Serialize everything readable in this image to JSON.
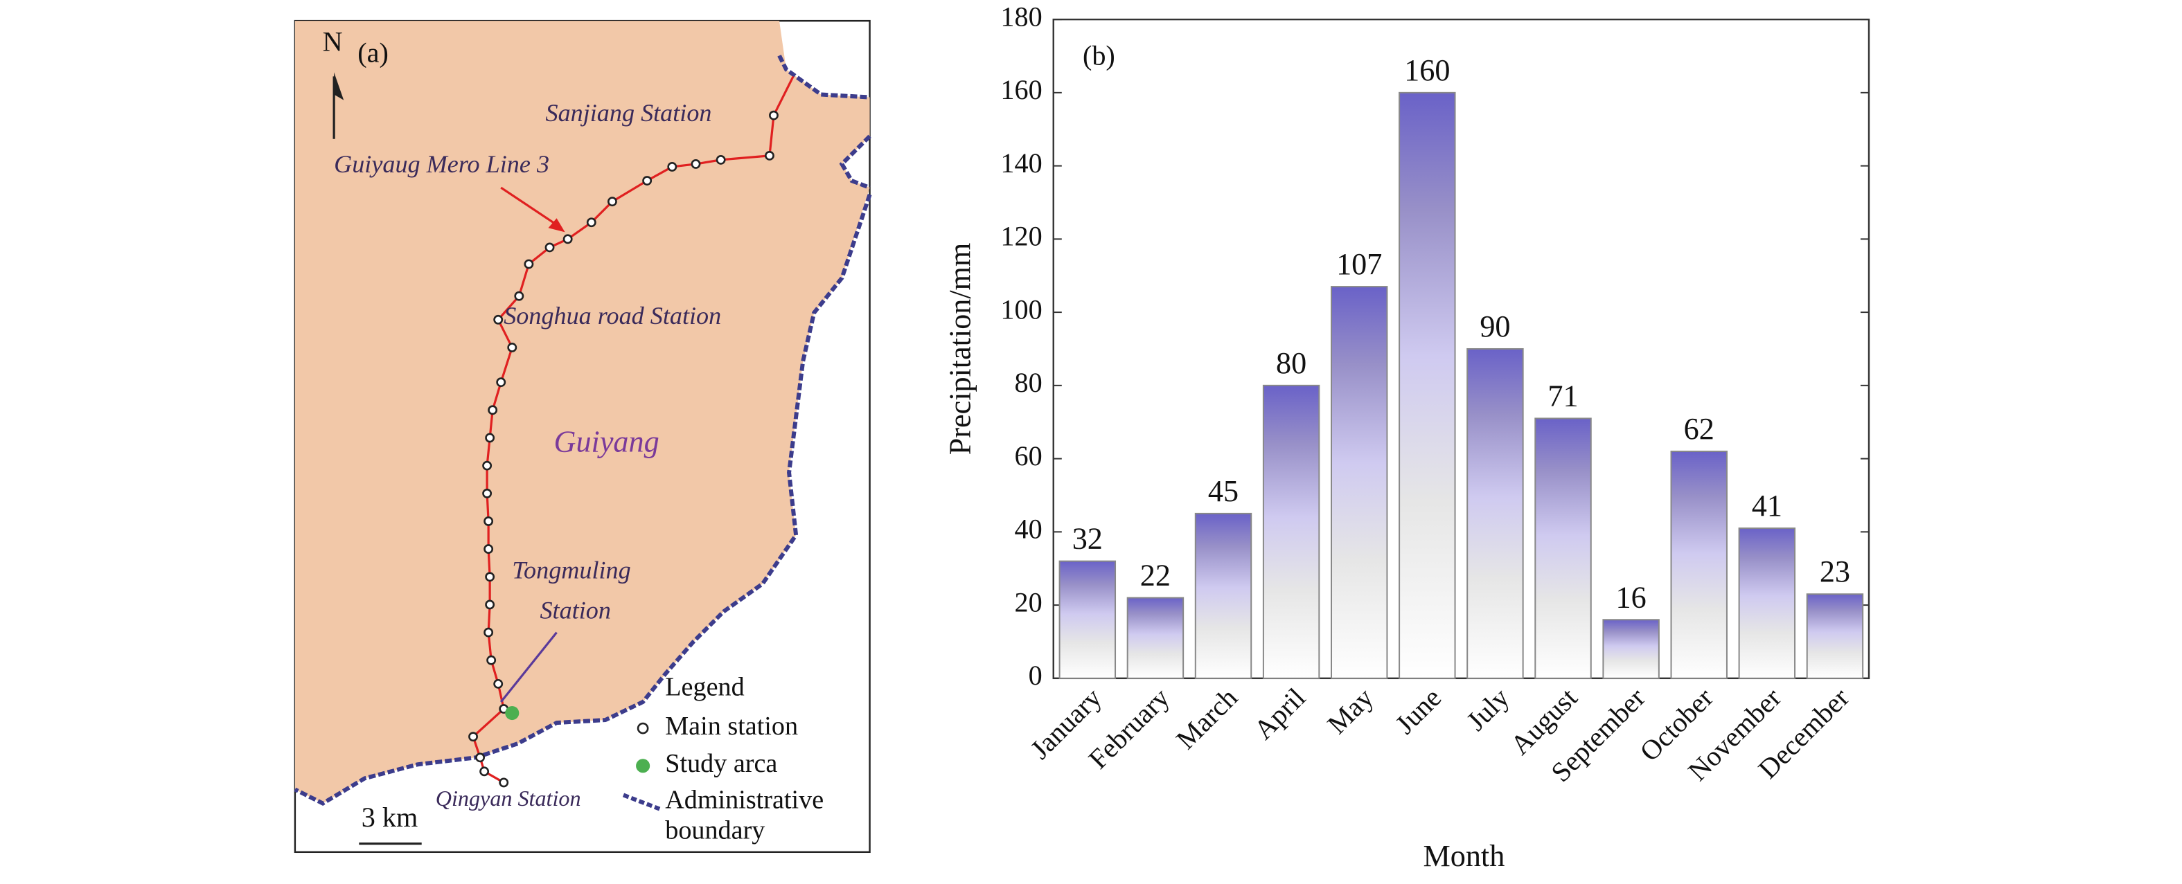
{
  "map": {
    "panel_label": "(a)",
    "north": "N",
    "sanjiang": "Sanjiang Station",
    "line_name": "Guiyaug Mero Line 3",
    "songhua": "Songhua road Station",
    "city": "Guiyang",
    "tongmuling": [
      "Tongmuling",
      "Station"
    ],
    "qingyan": "Qingyan Station",
    "scale": "3 km",
    "legend": {
      "title": "Legend",
      "items": [
        "Main station",
        "Study arca",
        "Administrative",
        "boundary"
      ]
    }
  },
  "chart_data": {
    "type": "bar",
    "panel_label": "(b)",
    "x_label": "Month",
    "y_label": "Precipitation/mm",
    "categories": [
      "January",
      "February",
      "March",
      "April",
      "May",
      "June",
      "July",
      "August",
      "September",
      "October",
      "November",
      "December"
    ],
    "values": [
      32,
      22,
      45,
      80,
      107,
      160,
      90,
      71,
      16,
      62,
      41,
      23
    ],
    "color": "#6a62c8",
    "ylim": [
      0,
      180
    ],
    "yticks": [
      0,
      20,
      40,
      60,
      80,
      100,
      120,
      140,
      160,
      180
    ]
  }
}
